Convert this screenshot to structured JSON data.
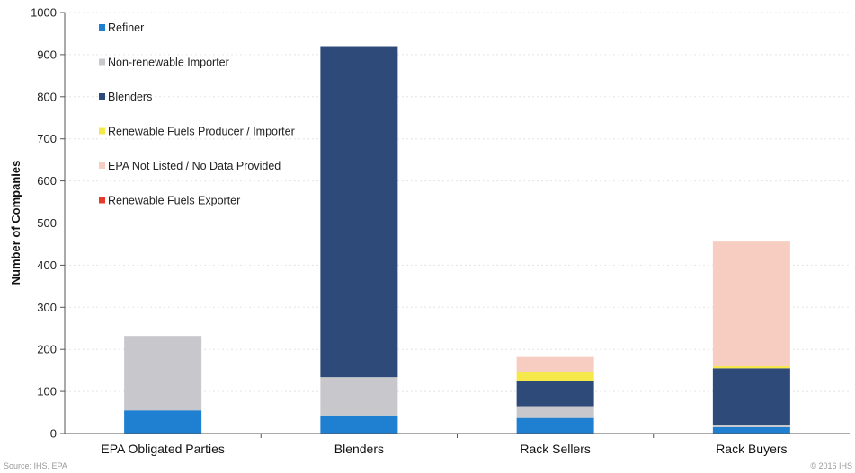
{
  "chart_data": {
    "type": "bar",
    "stacked": true,
    "ylabel": "Number of Companies",
    "ylim": [
      0,
      1000
    ],
    "yticks": [
      "0",
      "100",
      "200",
      "300",
      "400",
      "500",
      "600",
      "700",
      "800",
      "900",
      "1000"
    ],
    "categories": [
      "EPA Obligated Parties",
      "Blenders",
      "Rack Sellers",
      "Rack Buyers"
    ],
    "legend_position": "top-left",
    "grid": true,
    "series": [
      {
        "name": "Refiner",
        "color": "#1f7fd0",
        "values": [
          55,
          43,
          37,
          15
        ]
      },
      {
        "name": "Non-renewable Importer",
        "color": "#c8c8cc",
        "values": [
          177,
          91,
          28,
          5
        ]
      },
      {
        "name": "Blenders",
        "color": "#2e4a78",
        "values": [
          0,
          786,
          60,
          135
        ]
      },
      {
        "name": "Renewable Fuels Producer / Importer",
        "color": "#f5e84a",
        "values": [
          0,
          0,
          20,
          5
        ]
      },
      {
        "name": "EPA Not Listed / No Data Provided",
        "color": "#f6cdc0",
        "values": [
          0,
          0,
          37,
          296
        ]
      },
      {
        "name": "Renewable Fuels Exporter",
        "color": "#e83a2a",
        "values": [
          0,
          0,
          0,
          0
        ]
      }
    ]
  },
  "footer": {
    "source": "Source: IHS, EPA",
    "copyright": "© 2016 IHS"
  }
}
